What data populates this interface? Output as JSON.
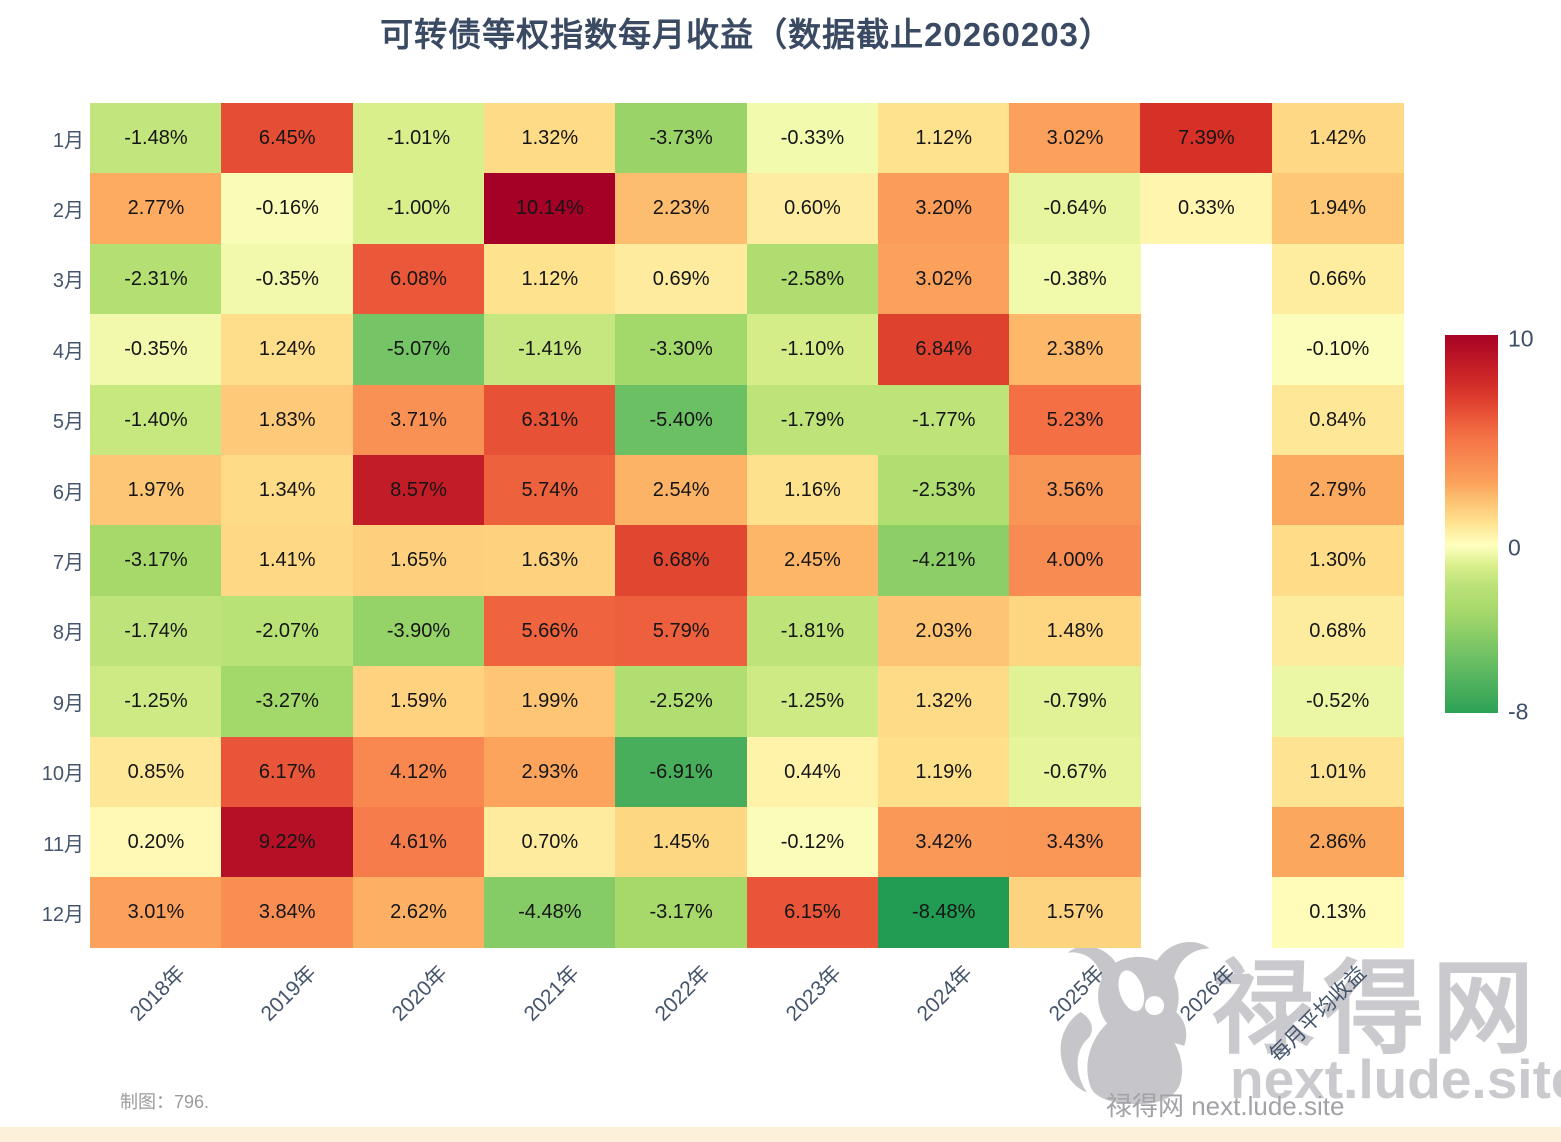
{
  "page": {
    "title": "可转债等权指数每月收益（数据截止20260203）"
  },
  "chart_data": {
    "type": "heatmap",
    "title": "可转债等权指数每月收益（数据截止20260203）",
    "x_labels": [
      "2018年",
      "2019年",
      "2020年",
      "2021年",
      "2022年",
      "2023年",
      "2024年",
      "2025年",
      "2026年",
      "每月平均收益"
    ],
    "y_labels": [
      "1月",
      "2月",
      "3月",
      "4月",
      "5月",
      "6月",
      "7月",
      "8月",
      "9月",
      "10月",
      "11月",
      "12月"
    ],
    "values": [
      [
        -1.48,
        6.45,
        -1.01,
        1.32,
        -3.73,
        -0.33,
        1.12,
        3.02,
        7.39,
        1.42
      ],
      [
        2.77,
        -0.16,
        -1.0,
        10.14,
        2.23,
        0.6,
        3.2,
        -0.64,
        0.33,
        1.94
      ],
      [
        -2.31,
        -0.35,
        6.08,
        1.12,
        0.69,
        -2.58,
        3.02,
        -0.38,
        null,
        0.66
      ],
      [
        -0.35,
        1.24,
        -5.07,
        -1.41,
        -3.3,
        -1.1,
        6.84,
        2.38,
        null,
        -0.1
      ],
      [
        -1.4,
        1.83,
        3.71,
        6.31,
        -5.4,
        -1.79,
        -1.77,
        5.23,
        null,
        0.84
      ],
      [
        1.97,
        1.34,
        8.57,
        5.74,
        2.54,
        1.16,
        -2.53,
        3.56,
        null,
        2.79
      ],
      [
        -3.17,
        1.41,
        1.65,
        1.63,
        6.68,
        2.45,
        -4.21,
        4.0,
        null,
        1.3
      ],
      [
        -1.74,
        -2.07,
        -3.9,
        5.66,
        5.79,
        -1.81,
        2.03,
        1.48,
        null,
        0.68
      ],
      [
        -1.25,
        -3.27,
        1.59,
        1.99,
        -2.52,
        -1.25,
        1.32,
        -0.79,
        null,
        -0.52
      ],
      [
        0.85,
        6.17,
        4.12,
        2.93,
        -6.91,
        0.44,
        1.19,
        -0.67,
        null,
        1.01
      ],
      [
        0.2,
        9.22,
        4.61,
        0.7,
        1.45,
        -0.12,
        3.42,
        3.43,
        null,
        2.86
      ],
      [
        3.01,
        3.84,
        2.62,
        -4.48,
        -3.17,
        6.15,
        -8.48,
        1.57,
        null,
        0.13
      ]
    ],
    "value_suffix": "%",
    "value_decimals": 2,
    "colorbar": {
      "tick_labels": [
        "10",
        "0",
        "-8"
      ],
      "max": 10,
      "mid": 0,
      "min": -8,
      "colors_top_to_bottom": [
        "#a50026",
        "#d73027",
        "#f46d43",
        "#fdae61",
        "#fee08b",
        "#ffffbf",
        "#d9ef8b",
        "#a6d96a",
        "#66bd63",
        "#1a9850"
      ]
    },
    "legend_position": "right",
    "grid": false,
    "colors": {
      "cell_text": "#151515",
      "axis_label": "#44546b",
      "title": "#3b4a63"
    }
  },
  "footer": {
    "credit": "制图：796."
  },
  "watermark": {
    "brand": "禄得网",
    "site": "next.lude.site",
    "small_text": "禄得网 next.lude.site",
    "icon": "bull-silhouette"
  }
}
